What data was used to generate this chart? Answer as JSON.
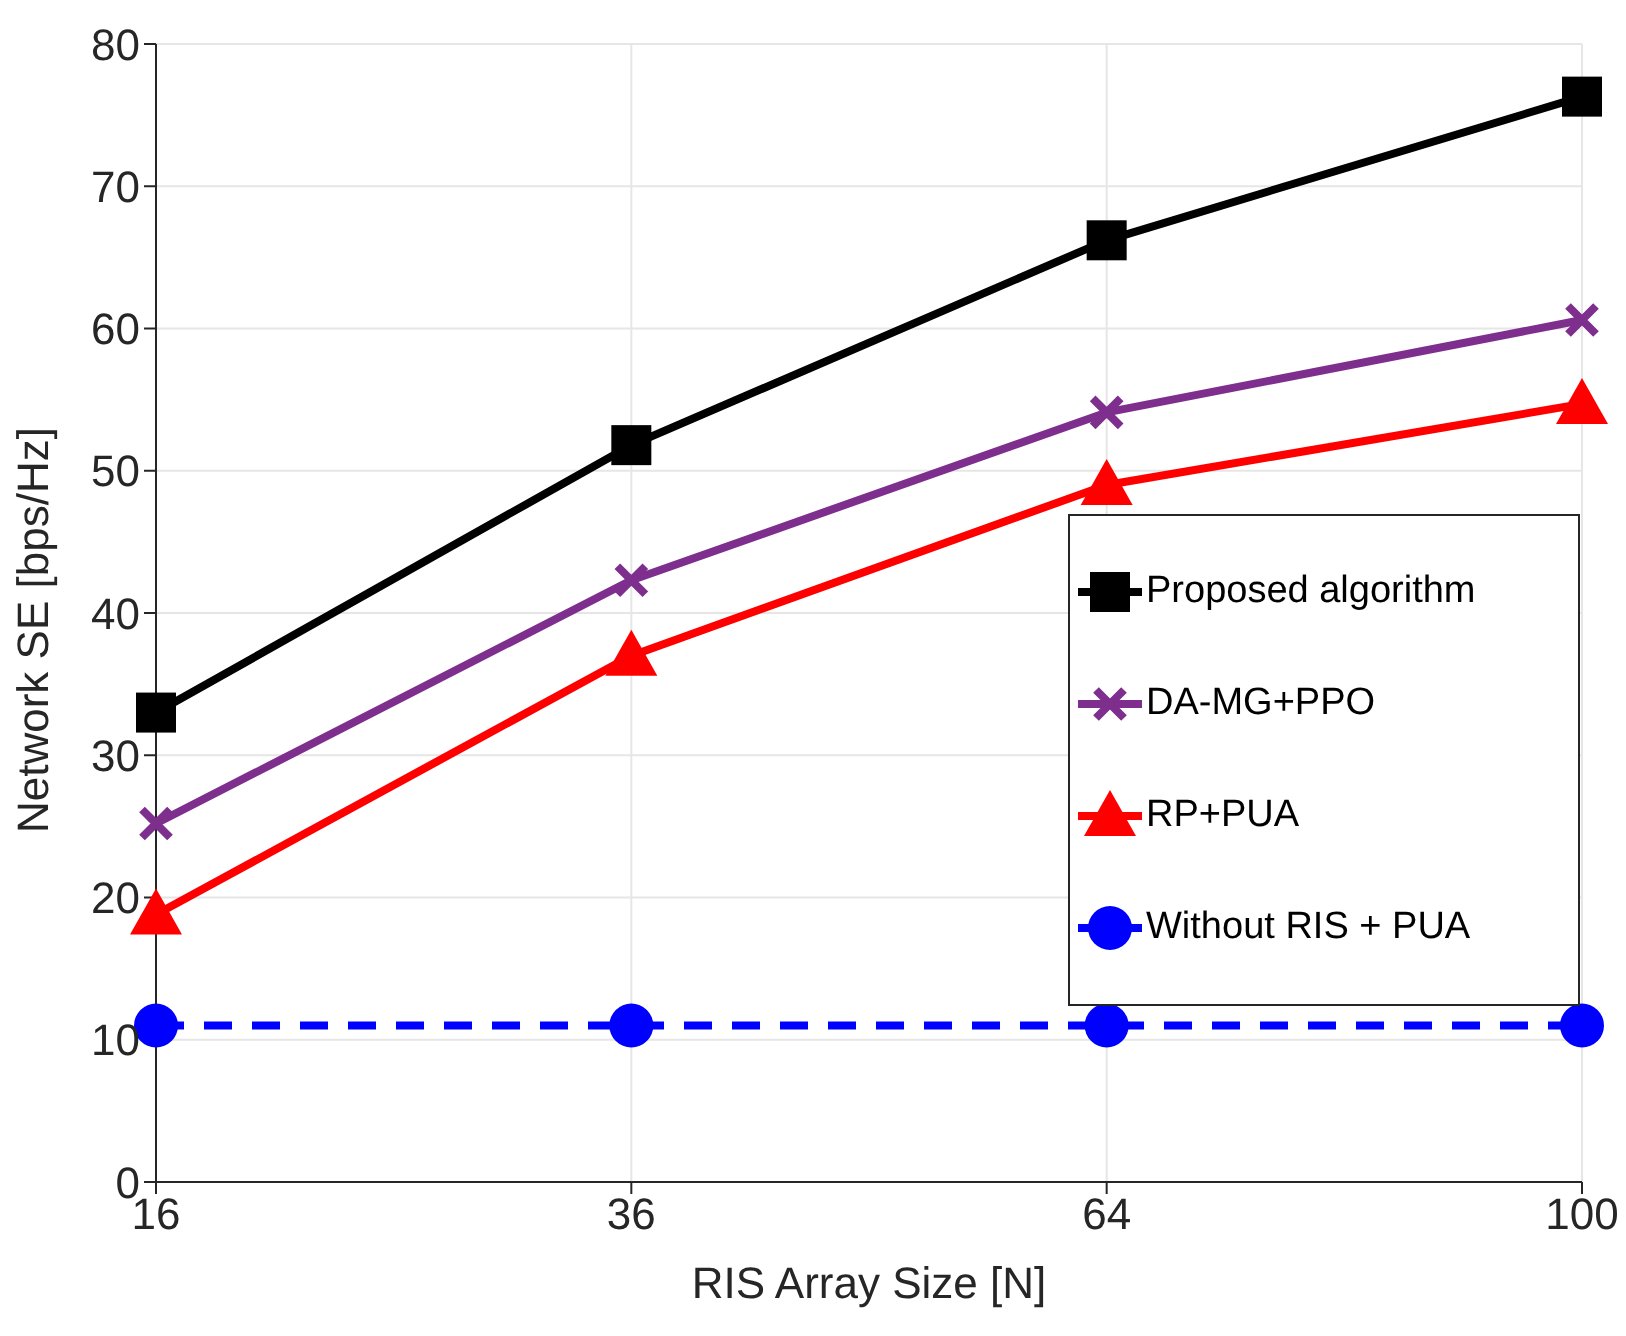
{
  "chart_data": {
    "type": "line",
    "xlabel": "RIS Array Size [N]",
    "ylabel": "Network SE [bps/Hz]",
    "categories": [
      "16",
      "36",
      "64",
      "100"
    ],
    "series": [
      {
        "name": "Proposed algorithm",
        "color": "#000000",
        "marker": "square",
        "line_style": "solid",
        "values": [
          33,
          51.8,
          66.2,
          76.3
        ]
      },
      {
        "name": "DA-MG+PPO",
        "color": "#7e2f8e",
        "marker": "cross",
        "line_style": "solid",
        "values": [
          25.2,
          42.3,
          54.1,
          60.6
        ]
      },
      {
        "name": "RP+PUA",
        "color": "#ff0000",
        "marker": "triangle",
        "line_style": "solid",
        "values": [
          18.8,
          37,
          49,
          54.7
        ]
      },
      {
        "name": "Without RIS + PUA",
        "color": "#0000ff",
        "marker": "circle",
        "line_style": "dashed",
        "values": [
          11,
          11,
          11,
          11
        ]
      }
    ],
    "ylim": [
      0,
      80
    ],
    "yticks": [
      0,
      10,
      20,
      30,
      40,
      50,
      60,
      70,
      80
    ],
    "grid": true,
    "legend": "right"
  }
}
